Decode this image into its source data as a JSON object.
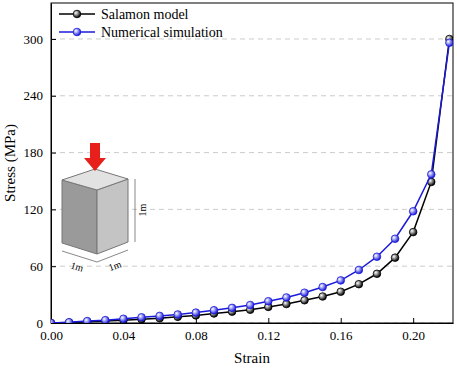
{
  "chart_data": {
    "type": "line",
    "x_label": "Strain",
    "y_label": "Stress (MPa)",
    "x": [
      0,
      0.01,
      0.02,
      0.03,
      0.04,
      0.05,
      0.06,
      0.07,
      0.08,
      0.09,
      0.1,
      0.11,
      0.12,
      0.13,
      0.14,
      0.15,
      0.16,
      0.17,
      0.18,
      0.19,
      0.2,
      0.21,
      0.22
    ],
    "series": [
      {
        "name": "Salamon model",
        "color": "#000000",
        "marker": "circle",
        "line_style": "solid",
        "values": [
          0,
          0.5,
          1.2,
          2,
          3,
          4,
          5,
          6.5,
          8,
          10,
          12,
          14,
          17,
          20,
          24,
          28,
          33,
          41,
          52,
          69,
          96,
          149,
          300
        ]
      },
      {
        "name": "Numerical simulation",
        "color": "#1a1adb",
        "marker": "circle",
        "line_style": "solid",
        "values": [
          0,
          0.8,
          2,
          3,
          4.5,
          6,
          7.5,
          9,
          11,
          13.5,
          16,
          19,
          23,
          27,
          32,
          38,
          45,
          56,
          70,
          89,
          118,
          157,
          296
        ]
      }
    ],
    "xlim": [
      0,
      0.222
    ],
    "xticks": [
      {
        "value": 0,
        "label": "0.00"
      },
      {
        "value": 0.04,
        "label": "0.04"
      },
      {
        "value": 0.08,
        "label": "0.08"
      },
      {
        "value": 0.12,
        "label": "0.12"
      },
      {
        "value": 0.16,
        "label": "0.16"
      },
      {
        "value": 0.2,
        "label": "0.20"
      }
    ],
    "ylim": [
      0,
      338
    ],
    "yticks": [
      0,
      60,
      120,
      180,
      240,
      300
    ],
    "grid": true,
    "legend": "upper left",
    "annotations": [
      "1m",
      "1m",
      "1m"
    ]
  }
}
